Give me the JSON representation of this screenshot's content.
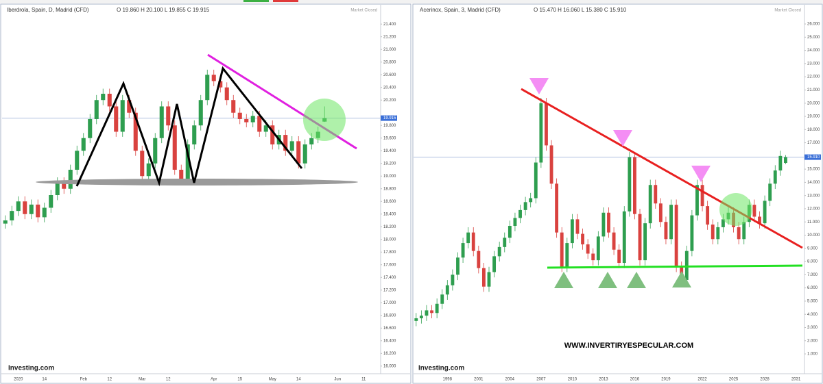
{
  "chart_data": [
    {
      "type": "candlestick",
      "title": "Iberdrola, Spain, D, Madrid (CFD)",
      "ohlc": "O 19.860 H 20.100 L 19.855 C 19.915",
      "status": "Market Closed",
      "watermark": "Investing.com",
      "up_color": "#2e9e4f",
      "down_color": "#d9423f",
      "categories": [
        null,
        null,
        "2020",
        null,
        null,
        null,
        "14",
        null,
        null,
        null,
        null,
        null,
        "Feb",
        null,
        null,
        null,
        "12",
        null,
        null,
        null,
        null,
        "Mar",
        null,
        null,
        null,
        "12",
        null,
        null,
        null,
        null,
        null,
        null,
        "Apr",
        null,
        null,
        null,
        "15",
        null,
        null,
        null,
        null,
        "May",
        null,
        null,
        null,
        "14",
        null,
        null,
        null,
        null,
        null,
        "Jun",
        null,
        null,
        null,
        "11",
        null,
        null
      ],
      "open": [
        18.25,
        18.3,
        18.45,
        18.6,
        18.4,
        18.55,
        18.35,
        18.5,
        18.7,
        18.9,
        18.8,
        19.1,
        19.4,
        19.6,
        19.9,
        20.2,
        20.3,
        20.1,
        19.7,
        20.2,
        20.0,
        19.4,
        19.0,
        19.2,
        19.6,
        20.1,
        19.8,
        19.1,
        18.95,
        19.5,
        19.8,
        20.2,
        20.6,
        20.5,
        20.4,
        20.2,
        20.0,
        19.9,
        19.85,
        19.95,
        19.7,
        19.8,
        19.5,
        19.65,
        19.4,
        19.55,
        19.2,
        19.5,
        19.6,
        19.86,
        null,
        null,
        null,
        null,
        null,
        null,
        null,
        null
      ],
      "high": [
        18.38,
        18.53,
        18.68,
        18.68,
        18.63,
        18.63,
        18.58,
        18.78,
        18.98,
        18.98,
        19.18,
        19.48,
        19.68,
        19.98,
        20.28,
        20.38,
        20.38,
        20.18,
        20.28,
        20.28,
        20.08,
        19.48,
        19.28,
        19.68,
        20.18,
        20.18,
        19.88,
        19.18,
        19.58,
        19.88,
        20.28,
        20.68,
        20.68,
        20.58,
        20.48,
        20.28,
        20.08,
        19.98,
        20.03,
        20.03,
        19.88,
        19.88,
        19.73,
        19.73,
        19.63,
        19.63,
        19.58,
        19.68,
        19.78,
        20.1,
        null,
        null,
        null,
        null,
        null,
        null,
        null,
        null
      ],
      "low": [
        18.17,
        18.22,
        18.37,
        18.32,
        18.32,
        18.27,
        18.27,
        18.42,
        18.62,
        18.72,
        18.72,
        19.02,
        19.32,
        19.52,
        19.82,
        20.12,
        20.02,
        19.62,
        19.62,
        19.92,
        19.32,
        18.92,
        18.92,
        19.12,
        19.52,
        19.72,
        19.02,
        18.87,
        18.87,
        19.42,
        19.72,
        20.12,
        20.42,
        20.32,
        20.12,
        19.92,
        19.82,
        19.77,
        19.77,
        19.62,
        19.62,
        19.42,
        19.42,
        19.32,
        19.32,
        19.12,
        19.12,
        19.42,
        19.52,
        19.855,
        null,
        null,
        null,
        null,
        null,
        null,
        null,
        null
      ],
      "close": [
        18.3,
        18.45,
        18.6,
        18.4,
        18.55,
        18.35,
        18.5,
        18.7,
        18.9,
        18.8,
        19.1,
        19.4,
        19.6,
        19.9,
        20.2,
        20.3,
        20.1,
        19.7,
        20.2,
        20.0,
        19.4,
        19.0,
        19.2,
        19.6,
        20.1,
        19.8,
        19.1,
        18.95,
        19.5,
        19.8,
        20.2,
        20.6,
        20.5,
        20.4,
        20.2,
        20.0,
        19.9,
        19.85,
        19.95,
        19.7,
        19.8,
        19.5,
        19.65,
        19.4,
        19.55,
        19.2,
        19.5,
        19.6,
        19.7,
        19.915,
        null,
        null,
        null,
        null,
        null,
        null,
        null,
        null
      ],
      "last_price": {
        "value": 19.915,
        "label": "19.915"
      },
      "ylim": [
        15.89,
        21.51
      ],
      "yticks": [
        {
          "value": 16.0,
          "label": "16.000"
        },
        {
          "value": 16.2,
          "label": "16.200"
        },
        {
          "value": 16.4,
          "label": "16.400"
        },
        {
          "value": 16.6,
          "label": "16.600"
        },
        {
          "value": 16.8,
          "label": "16.800"
        },
        {
          "value": 17.0,
          "label": "17.000"
        },
        {
          "value": 17.2,
          "label": "17.200"
        },
        {
          "value": 17.4,
          "label": "17.400"
        },
        {
          "value": 17.6,
          "label": "17.600"
        },
        {
          "value": 17.8,
          "label": "17.800"
        },
        {
          "value": 18.0,
          "label": "18.000"
        },
        {
          "value": 18.2,
          "label": "18.200"
        },
        {
          "value": 18.4,
          "label": "18.400"
        },
        {
          "value": 18.6,
          "label": "18.600"
        },
        {
          "value": 18.8,
          "label": "18.800"
        },
        {
          "value": 19.0,
          "label": "19.000"
        },
        {
          "value": 19.2,
          "label": "19.200"
        },
        {
          "value": 19.4,
          "label": "19.400"
        },
        {
          "value": 19.6,
          "label": "19.600"
        },
        {
          "value": 19.8,
          "label": "19.800"
        },
        {
          "value": 20.2,
          "label": "20.200"
        },
        {
          "value": 20.4,
          "label": "20.400"
        },
        {
          "value": 20.6,
          "label": "20.600"
        },
        {
          "value": 20.8,
          "label": "20.800"
        },
        {
          "value": 21.0,
          "label": "21.000"
        },
        {
          "value": 21.2,
          "label": "21.200"
        },
        {
          "value": 21.4,
          "label": "21.400"
        }
      ]
    },
    {
      "type": "candlestick",
      "title": "Acerinox, Spain, 3, Madrid (CFD)",
      "ohlc": "O 15.470 H 16.060 L 15.380 C 15.910",
      "status": "Market Closed",
      "watermark": "Investing.com",
      "annotation": "WWW.INVERTIRYESPECULAR.COM",
      "up_color": "#2e9e4f",
      "down_color": "#d9423f",
      "categories": [
        null,
        null,
        null,
        null,
        null,
        null,
        "1998",
        null,
        null,
        null,
        null,
        null,
        "2001",
        null,
        null,
        null,
        null,
        null,
        "2004",
        null,
        null,
        null,
        null,
        null,
        "2007",
        null,
        null,
        null,
        null,
        null,
        "2010",
        null,
        null,
        null,
        null,
        null,
        "2013",
        null,
        null,
        null,
        null,
        null,
        "2016",
        null,
        null,
        null,
        null,
        null,
        "2019",
        null,
        null,
        null,
        null,
        null,
        null,
        "2022",
        null,
        null,
        null,
        null,
        null,
        "2025",
        null,
        null,
        null,
        null,
        null,
        "2028",
        null,
        null,
        null,
        null,
        null,
        "2031",
        null
      ],
      "open": [
        3.5,
        3.7,
        3.9,
        4.3,
        4.1,
        4.8,
        5.5,
        6.2,
        7.0,
        8.3,
        9.4,
        10.2,
        8.8,
        7.5,
        6.1,
        7.2,
        8.4,
        9.1,
        9.8,
        10.7,
        11.3,
        11.9,
        12.5,
        12.8,
        15.5,
        20.0,
        16.8,
        13.9,
        10.2,
        7.6,
        9.4,
        11.2,
        10.1,
        9.3,
        8.6,
        8.1,
        9.9,
        11.7,
        10.2,
        8.9,
        7.9,
        11.8,
        15.9,
        11.6,
        8.1,
        10.9,
        13.8,
        12.4,
        11.0,
        9.7,
        12.3,
        7.6,
        6.6,
        8.8,
        11.5,
        13.8,
        12.2,
        10.8,
        9.7,
        10.6,
        11.2,
        11.7,
        10.6,
        9.7,
        11.0,
        12.3,
        11.4,
        10.9,
        12.6,
        13.9,
        14.9,
        15.47,
        null,
        null,
        null
      ],
      "high": [
        4.1,
        4.3,
        4.7,
        4.7,
        5.2,
        5.9,
        6.6,
        7.4,
        8.7,
        9.8,
        10.6,
        10.6,
        9.2,
        7.9,
        7.6,
        8.8,
        9.5,
        10.2,
        11.1,
        11.7,
        12.3,
        12.9,
        13.2,
        15.9,
        20.4,
        20.4,
        17.2,
        14.3,
        10.6,
        9.8,
        11.6,
        11.6,
        10.5,
        9.7,
        9.0,
        10.3,
        12.1,
        12.1,
        10.6,
        9.3,
        12.2,
        16.3,
        16.3,
        12.0,
        11.3,
        14.2,
        14.2,
        12.8,
        11.4,
        12.7,
        12.7,
        8.0,
        9.2,
        11.9,
        14.2,
        14.2,
        12.6,
        11.2,
        11.0,
        11.6,
        12.1,
        12.1,
        11.0,
        11.4,
        12.7,
        12.7,
        11.8,
        13.0,
        14.3,
        15.3,
        16.4,
        16.06,
        null,
        null,
        null
      ],
      "low": [
        3.1,
        3.3,
        3.5,
        3.7,
        3.7,
        4.4,
        5.1,
        5.8,
        6.6,
        7.9,
        9.0,
        8.4,
        7.1,
        5.7,
        5.7,
        6.8,
        8.0,
        8.7,
        9.4,
        10.3,
        10.9,
        11.5,
        12.1,
        12.4,
        15.1,
        16.4,
        13.5,
        9.8,
        7.2,
        7.2,
        9.0,
        9.7,
        8.9,
        8.2,
        7.7,
        7.7,
        9.5,
        9.8,
        8.5,
        7.5,
        7.5,
        11.4,
        11.2,
        7.7,
        7.7,
        10.5,
        12.0,
        10.6,
        9.3,
        9.3,
        7.2,
        6.2,
        6.2,
        8.4,
        11.1,
        11.8,
        10.4,
        9.3,
        9.3,
        10.2,
        10.8,
        10.2,
        9.3,
        9.3,
        10.6,
        11.0,
        10.5,
        10.5,
        12.2,
        13.5,
        14.5,
        15.38,
        null,
        null,
        null
      ],
      "close": [
        3.7,
        3.9,
        4.3,
        4.1,
        4.8,
        5.5,
        6.2,
        7.0,
        8.3,
        9.4,
        10.2,
        8.8,
        7.5,
        6.1,
        7.2,
        8.4,
        9.1,
        9.8,
        10.7,
        11.3,
        11.9,
        12.5,
        12.8,
        15.5,
        20.0,
        16.8,
        13.9,
        10.2,
        7.6,
        9.4,
        11.2,
        10.1,
        9.3,
        8.6,
        8.1,
        9.9,
        11.7,
        10.2,
        8.9,
        7.9,
        11.8,
        15.9,
        11.6,
        8.1,
        10.9,
        13.8,
        12.4,
        11.0,
        9.7,
        12.3,
        7.6,
        6.6,
        8.8,
        11.5,
        13.8,
        12.2,
        10.8,
        9.7,
        10.6,
        11.2,
        11.7,
        10.6,
        9.7,
        11.0,
        12.3,
        11.4,
        10.9,
        12.6,
        13.9,
        14.9,
        16.0,
        15.91,
        null,
        null,
        null
      ],
      "last_price": {
        "value": 15.91,
        "label": "15.910"
      },
      "ylim": [
        -0.45,
        26.52
      ],
      "yticks": [
        {
          "value": 1,
          "label": "1.000"
        },
        {
          "value": 2,
          "label": "2.000"
        },
        {
          "value": 3,
          "label": "3.000"
        },
        {
          "value": 4,
          "label": "4.000"
        },
        {
          "value": 5,
          "label": "5.000"
        },
        {
          "value": 6,
          "label": "6.000"
        },
        {
          "value": 7,
          "label": "7.000"
        },
        {
          "value": 8,
          "label": "8.000"
        },
        {
          "value": 9,
          "label": "9.000"
        },
        {
          "value": 10,
          "label": "10.000"
        },
        {
          "value": 11,
          "label": "11.000"
        },
        {
          "value": 12,
          "label": "12.000"
        },
        {
          "value": 13,
          "label": "13.000"
        },
        {
          "value": 14,
          "label": "14.000"
        },
        {
          "value": 15,
          "label": "15.000"
        },
        {
          "value": 17,
          "label": "17.000"
        },
        {
          "value": 18,
          "label": "18.000"
        },
        {
          "value": 19,
          "label": "19.000"
        },
        {
          "value": 20,
          "label": "20.000"
        },
        {
          "value": 21,
          "label": "21.000"
        },
        {
          "value": 22,
          "label": "22.000"
        },
        {
          "value": 23,
          "label": "23.000"
        },
        {
          "value": 24,
          "label": "24.000"
        },
        {
          "value": 25,
          "label": "25.000"
        },
        {
          "value": 26,
          "label": "26.000"
        }
      ]
    }
  ]
}
